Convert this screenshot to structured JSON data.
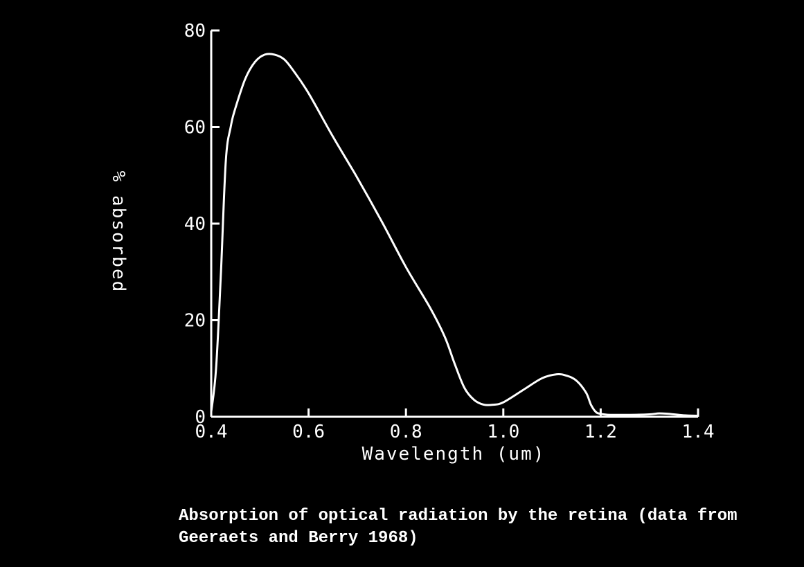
{
  "colors": {
    "background": "#000000",
    "foreground": "#ffffff"
  },
  "caption": {
    "line1": "Absorption of optical radiation by the retina (data from",
    "line2": "Geeraets and Berry 1968)"
  },
  "chart_data": {
    "type": "line",
    "title": "",
    "xlabel": "Wavelength  (um)",
    "ylabel": "% absorbed",
    "xlim": [
      0.4,
      1.4
    ],
    "ylim": [
      0,
      80
    ],
    "x_ticks": [
      0.4,
      0.6,
      0.8,
      1.0,
      1.2,
      1.4
    ],
    "x_tick_labels": [
      "0.4",
      "0.6",
      "0.8",
      "1.0",
      "1.2",
      "1.4"
    ],
    "y_ticks": [
      0,
      20,
      40,
      60,
      80
    ],
    "y_tick_labels": [
      "0",
      "20",
      "40",
      "60",
      "80"
    ],
    "grid": false,
    "series": [
      {
        "x": [
          0.4,
          0.41,
          0.42,
          0.43,
          0.44,
          0.45,
          0.47,
          0.49,
          0.51,
          0.53,
          0.55,
          0.57,
          0.6,
          0.65,
          0.7,
          0.75,
          0.8,
          0.85,
          0.88,
          0.9,
          0.92,
          0.94,
          0.96,
          0.98,
          1.0,
          1.04,
          1.08,
          1.11,
          1.13,
          1.15,
          1.17,
          1.18,
          1.19,
          1.2,
          1.22,
          1.26,
          1.3,
          1.32,
          1.34,
          1.37,
          1.4
        ],
        "y": [
          1,
          10,
          30,
          53,
          60,
          64,
          70,
          73.5,
          75,
          75,
          74,
          71.5,
          67,
          58,
          49.5,
          40.5,
          31,
          22.5,
          16.5,
          11,
          6,
          3.5,
          2.5,
          2.5,
          3,
          5.5,
          8,
          8.8,
          8.5,
          7.5,
          5,
          2.5,
          1,
          0.6,
          0.4,
          0.4,
          0.5,
          0.7,
          0.6,
          0.3,
          0.2
        ]
      }
    ]
  }
}
